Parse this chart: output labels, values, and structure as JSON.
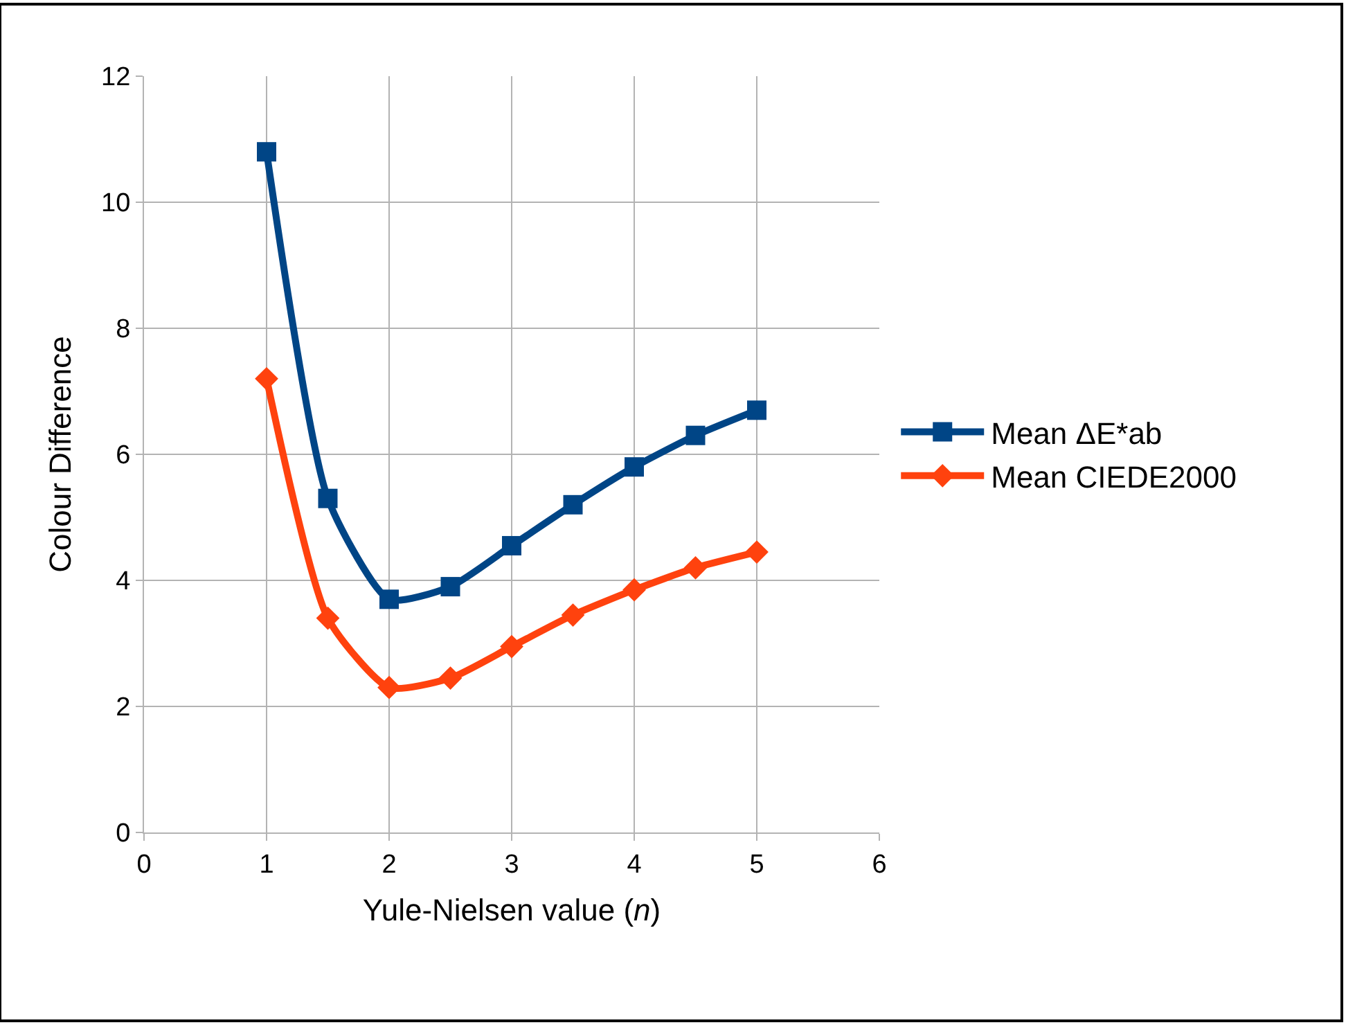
{
  "chart_data": {
    "type": "line",
    "xlabel": "Yule-Nielsen value (n)",
    "ylabel": "Colour Difference",
    "x": [
      1,
      1.5,
      2,
      2.5,
      3,
      3.5,
      4,
      4.5,
      5
    ],
    "series": [
      {
        "name": "Mean ΔE*ab",
        "color": "#004586",
        "marker": "square",
        "values": [
          10.8,
          5.3,
          3.7,
          3.9,
          4.55,
          5.2,
          5.8,
          6.3,
          6.7
        ]
      },
      {
        "name": "Mean CIEDE2000",
        "color": "#ff420e",
        "marker": "diamond",
        "values": [
          7.2,
          3.4,
          2.3,
          2.45,
          2.95,
          3.45,
          3.85,
          4.2,
          4.45
        ]
      }
    ],
    "xlim": [
      0,
      6
    ],
    "xticks": [
      0,
      1,
      2,
      3,
      4,
      5,
      6
    ],
    "ylim": [
      0,
      12
    ],
    "yticks": [
      0,
      2,
      4,
      6,
      8,
      10,
      12
    ],
    "grid": true,
    "legend": "right",
    "line_style": "solid"
  }
}
